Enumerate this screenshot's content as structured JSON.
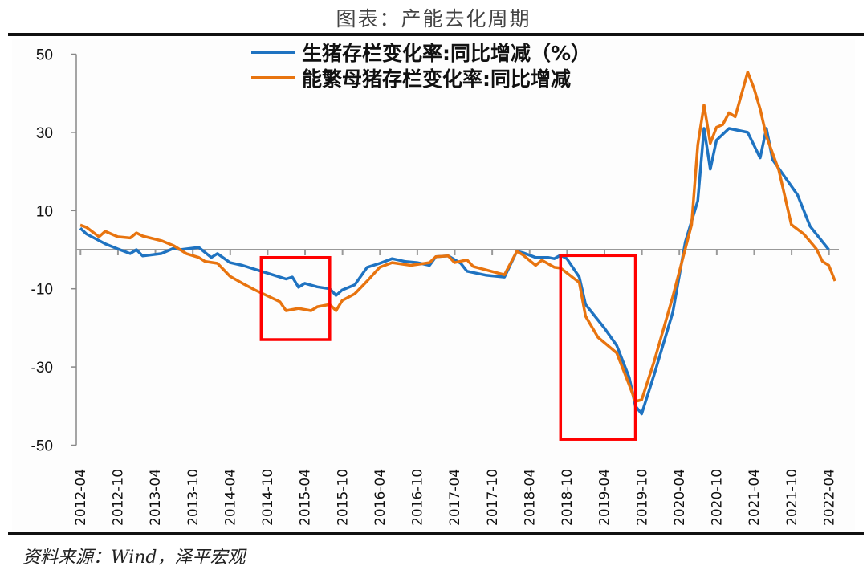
{
  "header": {
    "title": "图表：产能去化周期"
  },
  "footer": {
    "source": "资料来源：Wind，泽平宏观"
  },
  "chart_data": {
    "type": "line",
    "title": "",
    "xlabel": "",
    "ylabel": "",
    "ylim": [
      -50,
      50
    ],
    "yticks": [
      50,
      30,
      10,
      -10,
      -30,
      -50
    ],
    "xticks": [
      "2012-04",
      "2012-10",
      "2013-04",
      "2013-10",
      "2014-04",
      "2014-10",
      "2015-04",
      "2015-10",
      "2016-04",
      "2016-10",
      "2017-04",
      "2017-10",
      "2018-04",
      "2018-10",
      "2019-04",
      "2019-10",
      "2020-04",
      "2020-10",
      "2021-04",
      "2021-10",
      "2022-04"
    ],
    "legend_position": "top-center",
    "grid": false,
    "series": [
      {
        "name": "生猪存栏变化率:同比增减（%）",
        "color": "#1f73c1",
        "points": [
          [
            "2012-04",
            5.5
          ],
          [
            "2012-05",
            4
          ],
          [
            "2012-08",
            1.5
          ],
          [
            "2012-10",
            0.2
          ],
          [
            "2012-12",
            -1
          ],
          [
            "2013-01",
            0
          ],
          [
            "2013-02",
            -1.6
          ],
          [
            "2013-05",
            -1
          ],
          [
            "2013-07",
            0.4
          ],
          [
            "2013-08",
            0
          ],
          [
            "2013-11",
            0.6
          ],
          [
            "2014-01",
            -2
          ],
          [
            "2014-02",
            -1
          ],
          [
            "2014-04",
            -3.3
          ],
          [
            "2014-06",
            -4
          ],
          [
            "2014-08",
            -5
          ],
          [
            "2014-10",
            -6
          ],
          [
            "2014-12",
            -7
          ],
          [
            "2015-01",
            -7.5
          ],
          [
            "2015-02",
            -7
          ],
          [
            "2015-03",
            -9.6
          ],
          [
            "2015-04",
            -8.6
          ],
          [
            "2015-06",
            -9.5
          ],
          [
            "2015-08",
            -10
          ],
          [
            "2015-09",
            -11.7
          ],
          [
            "2015-10",
            -10.3
          ],
          [
            "2015-12",
            -9
          ],
          [
            "2016-02",
            -4.5
          ],
          [
            "2016-04",
            -3.5
          ],
          [
            "2016-06",
            -2.3
          ],
          [
            "2016-08",
            -3
          ],
          [
            "2016-10",
            -3.3
          ],
          [
            "2016-12",
            -4
          ],
          [
            "2017-01",
            -1.8
          ],
          [
            "2017-03",
            -1.6
          ],
          [
            "2017-05",
            -3.5
          ],
          [
            "2017-06",
            -5.5
          ],
          [
            "2017-09",
            -6.5
          ],
          [
            "2017-12",
            -7
          ],
          [
            "2018-02",
            -0.4
          ],
          [
            "2018-03",
            -0.8
          ],
          [
            "2018-05",
            -2
          ],
          [
            "2018-07",
            -2
          ],
          [
            "2018-08",
            -2.3
          ],
          [
            "2018-09",
            -1.4
          ],
          [
            "2018-10",
            -2.3
          ],
          [
            "2018-12",
            -7
          ],
          [
            "2019-01",
            -14
          ],
          [
            "2019-04",
            -20
          ],
          [
            "2019-06",
            -24.5
          ],
          [
            "2019-08",
            -32.7
          ],
          [
            "2019-09",
            -40
          ],
          [
            "2019-10",
            -42
          ],
          [
            "2019-12",
            -32
          ],
          [
            "2020-03",
            -16
          ],
          [
            "2020-05",
            2
          ],
          [
            "2020-07",
            12.5
          ],
          [
            "2020-08",
            31
          ],
          [
            "2020-09",
            20.6
          ],
          [
            "2020-10",
            28
          ],
          [
            "2020-12",
            31
          ],
          [
            "2021-03",
            30
          ],
          [
            "2021-05",
            23.5
          ],
          [
            "2021-06",
            31
          ],
          [
            "2021-07",
            23
          ],
          [
            "2021-11",
            14
          ],
          [
            "2022-01",
            6
          ],
          [
            "2022-04",
            0
          ]
        ]
      },
      {
        "name": "能繁母猪存栏变化率:同比增减",
        "color": "#e8740f",
        "points": [
          [
            "2012-04",
            6.3
          ],
          [
            "2012-05",
            5.7
          ],
          [
            "2012-07",
            3.3
          ],
          [
            "2012-08",
            4.7
          ],
          [
            "2012-10",
            3.3
          ],
          [
            "2012-12",
            3
          ],
          [
            "2013-01",
            4.3
          ],
          [
            "2013-02",
            3.5
          ],
          [
            "2013-05",
            2.3
          ],
          [
            "2013-07",
            1
          ],
          [
            "2013-09",
            -1
          ],
          [
            "2013-11",
            -2
          ],
          [
            "2013-12",
            -3
          ],
          [
            "2014-02",
            -3.5
          ],
          [
            "2014-04",
            -6.8
          ],
          [
            "2014-06",
            -8.6
          ],
          [
            "2014-08",
            -10.3
          ],
          [
            "2014-12",
            -13.3
          ],
          [
            "2015-01",
            -15.6
          ],
          [
            "2015-03",
            -15
          ],
          [
            "2015-05",
            -15.6
          ],
          [
            "2015-06",
            -14.6
          ],
          [
            "2015-08",
            -14
          ],
          [
            "2015-09",
            -15.6
          ],
          [
            "2015-10",
            -13
          ],
          [
            "2015-12",
            -11.3
          ],
          [
            "2016-02",
            -8
          ],
          [
            "2016-04",
            -4.5
          ],
          [
            "2016-06",
            -3.3
          ],
          [
            "2016-09",
            -4
          ],
          [
            "2016-12",
            -3.3
          ],
          [
            "2017-01",
            -1.8
          ],
          [
            "2017-03",
            -1.6
          ],
          [
            "2017-04",
            -3.3
          ],
          [
            "2017-06",
            -2.6
          ],
          [
            "2017-07",
            -4.3
          ],
          [
            "2017-11",
            -6
          ],
          [
            "2017-12",
            -6.4
          ],
          [
            "2018-02",
            -0.4
          ],
          [
            "2018-03",
            -1.4
          ],
          [
            "2018-05",
            -4
          ],
          [
            "2018-06",
            -2.7
          ],
          [
            "2018-08",
            -4.5
          ],
          [
            "2018-09",
            -4.7
          ],
          [
            "2018-12",
            -8.4
          ],
          [
            "2019-01",
            -17
          ],
          [
            "2019-03",
            -22.4
          ],
          [
            "2019-06",
            -26.4
          ],
          [
            "2019-08",
            -34.6
          ],
          [
            "2019-09",
            -38.8
          ],
          [
            "2019-10",
            -38.4
          ],
          [
            "2019-12",
            -28.6
          ],
          [
            "2020-03",
            -12
          ],
          [
            "2020-06",
            6.4
          ],
          [
            "2020-07",
            26.8
          ],
          [
            "2020-08",
            37
          ],
          [
            "2020-09",
            27.2
          ],
          [
            "2020-10",
            31.3
          ],
          [
            "2020-11",
            32
          ],
          [
            "2020-12",
            35
          ],
          [
            "2021-01",
            34
          ],
          [
            "2021-03",
            45.4
          ],
          [
            "2021-04",
            41.3
          ],
          [
            "2021-05",
            36
          ],
          [
            "2021-06",
            29
          ],
          [
            "2021-08",
            20.3
          ],
          [
            "2021-10",
            6.4
          ],
          [
            "2021-12",
            4
          ],
          [
            "2022-02",
            0.2
          ],
          [
            "2022-03",
            -3
          ],
          [
            "2022-04",
            -4
          ],
          [
            "2022-05",
            -8
          ]
        ]
      }
    ],
    "highlight_boxes": [
      {
        "x": [
          "2014-09",
          "2015-08"
        ],
        "y": [
          -23,
          -2
        ],
        "color": "#ff0000"
      },
      {
        "x": [
          "2018-09",
          "2019-09"
        ],
        "y": [
          -48.5,
          -1.5
        ],
        "color": "#ff0000"
      }
    ]
  }
}
